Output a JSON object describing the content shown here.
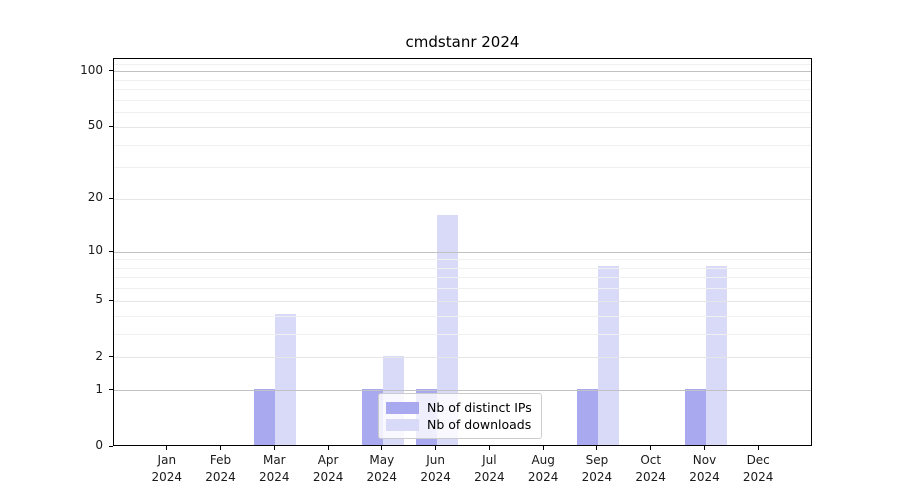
{
  "chart_data": {
    "type": "bar",
    "title": "cmdstanr 2024",
    "categories": [
      "Jan",
      "Feb",
      "Mar",
      "Apr",
      "May",
      "Jun",
      "Jul",
      "Aug",
      "Sep",
      "Oct",
      "Nov",
      "Dec"
    ],
    "year_label": "2024",
    "series": [
      {
        "name": "Nb of distinct IPs",
        "color": "#a9a9f0",
        "values": [
          0,
          0,
          1,
          0,
          1,
          1,
          0,
          0,
          1,
          0,
          1,
          0
        ]
      },
      {
        "name": "Nb of downloads",
        "color": "#d9d9f8",
        "values": [
          0,
          0,
          4,
          0,
          2,
          16,
          0,
          0,
          8,
          0,
          8,
          0
        ]
      }
    ],
    "y_axis": {
      "scale": "log10(1+x)",
      "ticks": [
        0,
        1,
        2,
        5,
        10,
        20,
        50,
        100
      ],
      "major_gridlines": [
        1,
        10,
        100
      ],
      "mid_gridlines": [
        2,
        5,
        20,
        50
      ],
      "minor_gridlines": [
        3,
        4,
        6,
        7,
        8,
        9,
        30,
        40,
        60,
        70,
        80,
        90,
        110
      ],
      "top_value": 117
    },
    "xlabel": "",
    "ylabel": "",
    "grid": "on, drawn above bars",
    "legend_position": "lower center inside plot"
  },
  "colors": {
    "major_grid": "#c2c2c2",
    "mid_grid": "#e6e6e6",
    "minor_grid": "#f0f0f0",
    "spine": "#000000",
    "text": "#1a1a1a",
    "legend_border": "#cccccc",
    "background": "#ffffff"
  }
}
